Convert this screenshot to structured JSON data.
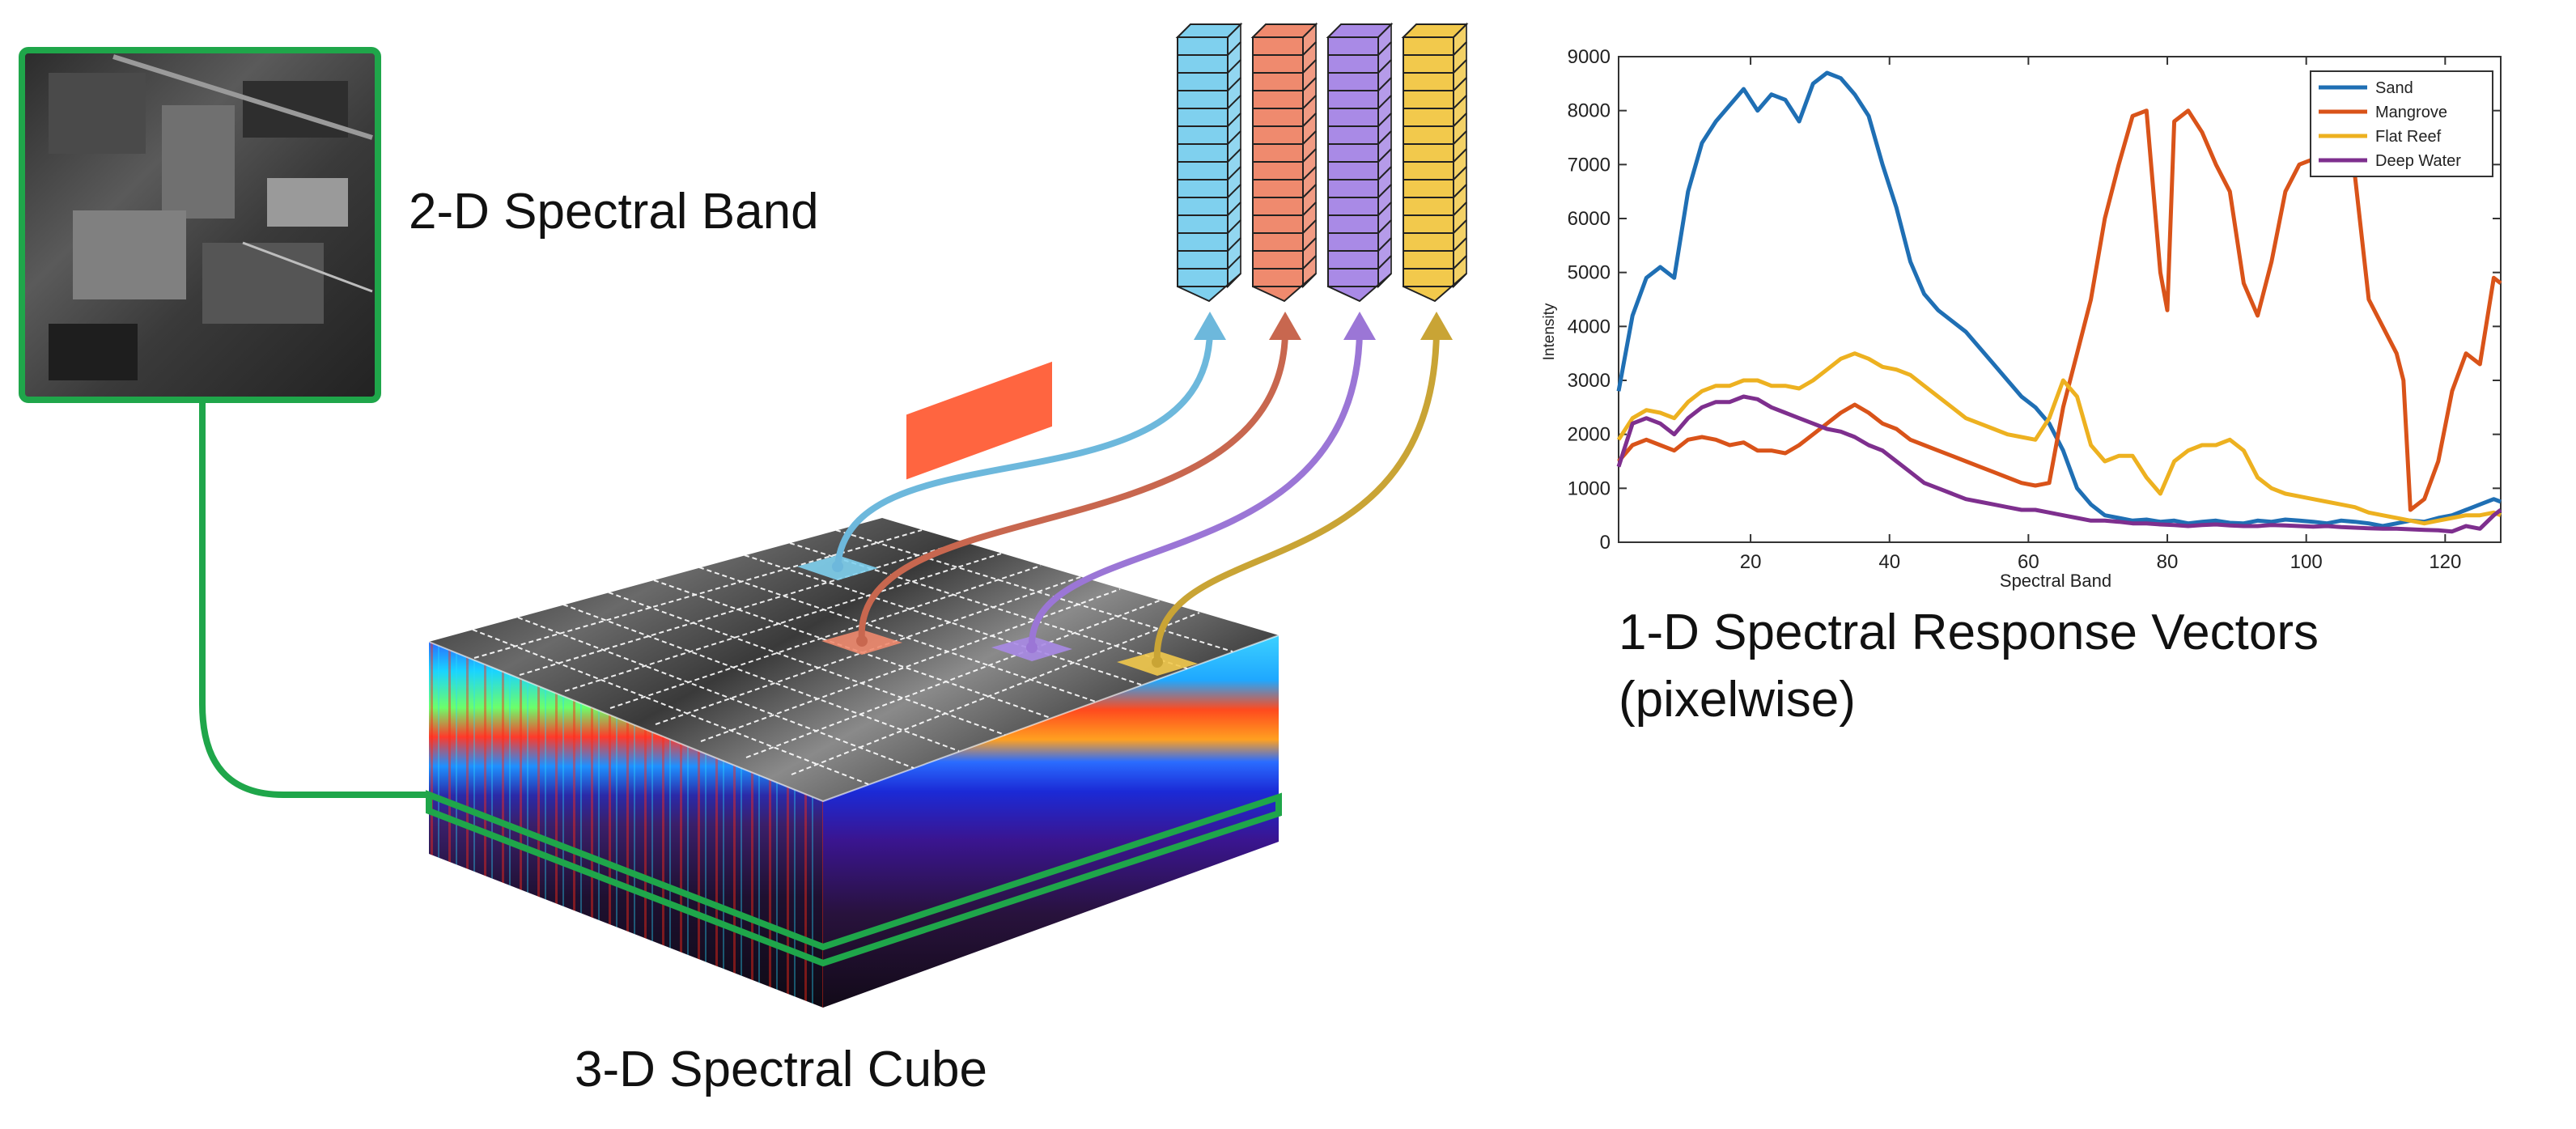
{
  "labels": {
    "spectral_band": "2-D Spectral Band",
    "spectral_cube": "3-D Spectral Cube",
    "response_vectors_line1": "1-D Spectral Response Vectors",
    "response_vectors_line2": "(pixelwise)"
  },
  "colors": {
    "green_outline": "#1fa64a",
    "vector_blue": "#7fd0ee",
    "vector_red": "#ef8a6e",
    "vector_purple": "#a98ae6",
    "vector_yellow": "#f2c94c",
    "arrow_blue": "#6db8dc",
    "arrow_red": "#c8674f",
    "arrow_purple": "#9b76d6",
    "arrow_yellow": "#c9a435"
  },
  "vectors": [
    {
      "name": "blue-vector",
      "color": "#7fd0ee"
    },
    {
      "name": "red-vector",
      "color": "#ef8a6e"
    },
    {
      "name": "purple-vector",
      "color": "#a98ae6"
    },
    {
      "name": "yellow-vector",
      "color": "#f2c94c"
    }
  ],
  "chart_data": {
    "type": "line",
    "title": "",
    "xlabel": "Spectral Band",
    "ylabel": "Intensity",
    "xlim": [
      1,
      128
    ],
    "ylim": [
      0,
      9000
    ],
    "xticks": [
      20,
      40,
      60,
      80,
      100,
      120
    ],
    "yticks": [
      0,
      1000,
      2000,
      3000,
      4000,
      5000,
      6000,
      7000,
      8000,
      9000
    ],
    "legend_position": "top-right",
    "grid": false,
    "series": [
      {
        "name": "Sand",
        "color": "#1f6fb4",
        "x": [
          1,
          3,
          5,
          7,
          9,
          11,
          13,
          15,
          17,
          19,
          21,
          23,
          25,
          27,
          29,
          31,
          33,
          35,
          37,
          39,
          41,
          43,
          45,
          47,
          49,
          51,
          53,
          55,
          57,
          59,
          61,
          63,
          65,
          67,
          69,
          71,
          73,
          75,
          77,
          79,
          81,
          83,
          85,
          87,
          89,
          91,
          93,
          95,
          97,
          99,
          101,
          103,
          105,
          107,
          109,
          111,
          113,
          115,
          117,
          119,
          121,
          123,
          125,
          127,
          128
        ],
        "y": [
          2800,
          4200,
          4900,
          5100,
          4900,
          6500,
          7400,
          7800,
          8100,
          8400,
          8000,
          8300,
          8200,
          7800,
          8500,
          8700,
          8600,
          8300,
          7900,
          7000,
          6200,
          5200,
          4600,
          4300,
          4100,
          3900,
          3600,
          3300,
          3000,
          2700,
          2500,
          2200,
          1700,
          1000,
          700,
          500,
          450,
          400,
          420,
          380,
          400,
          350,
          380,
          400,
          360,
          350,
          400,
          380,
          420,
          400,
          380,
          350,
          400,
          380,
          350,
          300,
          350,
          400,
          380,
          450,
          500,
          600,
          700,
          800,
          750
        ]
      },
      {
        "name": "Mangrove",
        "color": "#d95319",
        "x": [
          1,
          3,
          5,
          7,
          9,
          11,
          13,
          15,
          17,
          19,
          21,
          23,
          25,
          27,
          29,
          31,
          33,
          35,
          37,
          39,
          41,
          43,
          45,
          47,
          49,
          51,
          53,
          55,
          57,
          59,
          61,
          63,
          65,
          67,
          69,
          71,
          73,
          75,
          77,
          79,
          80,
          81,
          83,
          85,
          87,
          89,
          91,
          93,
          95,
          97,
          99,
          101,
          103,
          105,
          107,
          109,
          111,
          113,
          114,
          115,
          117,
          119,
          121,
          123,
          125,
          127,
          128
        ],
        "y": [
          1500,
          1800,
          1900,
          1800,
          1700,
          1900,
          1950,
          1900,
          1800,
          1850,
          1700,
          1700,
          1650,
          1800,
          2000,
          2200,
          2400,
          2550,
          2400,
          2200,
          2100,
          1900,
          1800,
          1700,
          1600,
          1500,
          1400,
          1300,
          1200,
          1100,
          1050,
          1100,
          2500,
          3500,
          4500,
          6000,
          7000,
          7900,
          8000,
          5000,
          4300,
          7800,
          8000,
          7600,
          7000,
          6500,
          4800,
          4200,
          5200,
          6500,
          7000,
          7100,
          6900,
          7200,
          6800,
          4500,
          4000,
          3500,
          3000,
          600,
          800,
          1500,
          2800,
          3500,
          3300,
          4900,
          4800
        ]
      },
      {
        "name": "Flat Reef",
        "color": "#edb120",
        "x": [
          1,
          3,
          5,
          7,
          9,
          11,
          13,
          15,
          17,
          19,
          21,
          23,
          25,
          27,
          29,
          31,
          33,
          35,
          37,
          39,
          41,
          43,
          45,
          47,
          49,
          51,
          53,
          55,
          57,
          59,
          61,
          63,
          65,
          67,
          69,
          71,
          73,
          75,
          77,
          79,
          81,
          83,
          85,
          87,
          89,
          91,
          93,
          95,
          97,
          99,
          101,
          103,
          105,
          107,
          109,
          111,
          113,
          115,
          117,
          119,
          121,
          123,
          125,
          127,
          128
        ],
        "y": [
          1900,
          2300,
          2450,
          2400,
          2300,
          2600,
          2800,
          2900,
          2900,
          3000,
          3000,
          2900,
          2900,
          2850,
          3000,
          3200,
          3400,
          3500,
          3400,
          3250,
          3200,
          3100,
          2900,
          2700,
          2500,
          2300,
          2200,
          2100,
          2000,
          1950,
          1900,
          2300,
          3000,
          2700,
          1800,
          1500,
          1600,
          1600,
          1200,
          900,
          1500,
          1700,
          1800,
          1800,
          1900,
          1700,
          1200,
          1000,
          900,
          850,
          800,
          750,
          700,
          650,
          550,
          500,
          450,
          400,
          350,
          400,
          450,
          500,
          500,
          550,
          500
        ]
      },
      {
        "name": "Deep Water",
        "color": "#7e2f8e",
        "x": [
          1,
          3,
          5,
          7,
          9,
          11,
          13,
          15,
          17,
          19,
          21,
          23,
          25,
          27,
          29,
          31,
          33,
          35,
          37,
          39,
          41,
          43,
          45,
          47,
          49,
          51,
          53,
          55,
          57,
          59,
          61,
          63,
          65,
          67,
          69,
          71,
          73,
          75,
          77,
          79,
          81,
          83,
          85,
          87,
          89,
          91,
          93,
          95,
          97,
          99,
          101,
          103,
          105,
          107,
          109,
          111,
          113,
          115,
          117,
          119,
          121,
          123,
          125,
          127,
          128
        ],
        "y": [
          1400,
          2200,
          2300,
          2200,
          2000,
          2300,
          2500,
          2600,
          2600,
          2700,
          2650,
          2500,
          2400,
          2300,
          2200,
          2100,
          2050,
          1950,
          1800,
          1700,
          1500,
          1300,
          1100,
          1000,
          900,
          800,
          750,
          700,
          650,
          600,
          600,
          550,
          500,
          450,
          400,
          400,
          380,
          350,
          350,
          330,
          320,
          300,
          320,
          330,
          310,
          300,
          300,
          320,
          310,
          300,
          290,
          300,
          280,
          270,
          260,
          250,
          250,
          240,
          230,
          220,
          200,
          300,
          250,
          500,
          600
        ]
      }
    ]
  }
}
